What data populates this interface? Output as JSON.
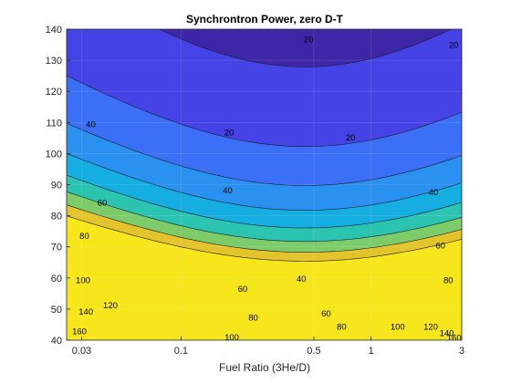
{
  "chart_data": {
    "type": "contour",
    "title": "Synchrontron Power, zero D-T",
    "xlabel": "Fuel Ratio (3He/D)",
    "ylabel": "",
    "xscale": "log",
    "xlim": [
      0.025,
      3
    ],
    "ylim": [
      40,
      140
    ],
    "xticks": [
      {
        "value": 0.03,
        "label": "0.03"
      },
      {
        "value": 0.1,
        "label": "0.1"
      },
      {
        "value": 0.5,
        "label": "0.5"
      },
      {
        "value": 1,
        "label": "1"
      },
      {
        "value": 3,
        "label": "3"
      }
    ],
    "yticks": [
      {
        "value": 40,
        "label": "40"
      },
      {
        "value": 50,
        "label": "50"
      },
      {
        "value": 60,
        "label": "60"
      },
      {
        "value": 70,
        "label": "70"
      },
      {
        "value": 80,
        "label": "80"
      },
      {
        "value": 90,
        "label": "90"
      },
      {
        "value": 100,
        "label": "100"
      },
      {
        "value": 110,
        "label": "110"
      },
      {
        "value": 120,
        "label": "120"
      },
      {
        "value": 130,
        "label": "130"
      },
      {
        "value": 140,
        "label": "140"
      }
    ],
    "grid": true,
    "levels": [
      20,
      40,
      60,
      80,
      100,
      120,
      140,
      160
    ],
    "level_colors": [
      "#3e26a8",
      "#4543e6",
      "#3b6ff8",
      "#2b91f0",
      "#16aee0",
      "#2ac4b1",
      "#7dcc6a",
      "#e3c42a",
      "#f6e61b"
    ],
    "contour_labels": [
      {
        "text": "20",
        "x": 0.47,
        "y": 136.8
      },
      {
        "text": "20",
        "x": 2.72,
        "y": 135.0
      },
      {
        "text": "20",
        "x": 0.179,
        "y": 106.8
      },
      {
        "text": "20",
        "x": 0.78,
        "y": 105.3
      },
      {
        "text": "40",
        "x": 0.0335,
        "y": 109.5
      },
      {
        "text": "40",
        "x": 0.176,
        "y": 88.3
      },
      {
        "text": "40",
        "x": 0.43,
        "y": 59.8
      },
      {
        "text": "40",
        "x": 2.13,
        "y": 87.7
      },
      {
        "text": "60",
        "x": 0.0385,
        "y": 84.3
      },
      {
        "text": "60",
        "x": 0.211,
        "y": 56.5
      },
      {
        "text": "60",
        "x": 0.58,
        "y": 48.6
      },
      {
        "text": "60",
        "x": 2.32,
        "y": 70.5
      },
      {
        "text": "80",
        "x": 0.031,
        "y": 73.6
      },
      {
        "text": "80",
        "x": 0.24,
        "y": 47.3
      },
      {
        "text": "80",
        "x": 0.7,
        "y": 44.4
      },
      {
        "text": "80",
        "x": 2.55,
        "y": 59.3
      },
      {
        "text": "100",
        "x": 0.0305,
        "y": 59.3
      },
      {
        "text": "100",
        "x": 0.185,
        "y": 41.0
      },
      {
        "text": "100",
        "x": 1.38,
        "y": 44.4
      },
      {
        "text": "120",
        "x": 0.0425,
        "y": 51.3
      },
      {
        "text": "120",
        "x": 2.06,
        "y": 44.4
      },
      {
        "text": "140",
        "x": 0.0316,
        "y": 49.2
      },
      {
        "text": "140",
        "x": 2.5,
        "y": 42.3
      },
      {
        "text": "160",
        "x": 0.0292,
        "y": 43.0
      },
      {
        "text": "160",
        "x": 2.74,
        "y": 40.9
      }
    ]
  }
}
